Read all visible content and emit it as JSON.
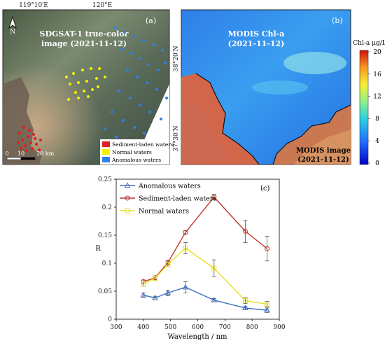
{
  "panel_a": {
    "label": "(a)",
    "title_line1": "SDGSAT-1 true-color",
    "title_line2": "image (2021-11-12)",
    "lon_ticks": [
      "119°10′E",
      "120°E"
    ],
    "lat_ticks": [
      "38°20′N",
      "37°30′N"
    ],
    "north": "N",
    "scale": {
      "labels": [
        "0",
        "10",
        "20 km"
      ]
    },
    "legend": [
      {
        "label": "Sediment-laden waters",
        "color": "#e02020"
      },
      {
        "label": "Normal waters",
        "color": "#f5f000"
      },
      {
        "label": "Anomalous waters",
        "color": "#2f7fe8"
      }
    ]
  },
  "panel_b": {
    "label": "(b)",
    "title_line1": "MODIS Chl-a",
    "title_line2": "(2021-11-12)",
    "footer_line1": "MODIS image",
    "footer_line2": "(2021-11-12)",
    "colorbar_title": "Chl-a μg/L",
    "colorbar_ticks": [
      "20",
      "16",
      "12",
      "8",
      "4",
      "0"
    ]
  },
  "chart_data": {
    "type": "line",
    "panel_label": "(c)",
    "xlabel": "Wavelength / nm",
    "ylabel": "R",
    "xlim": [
      300,
      900
    ],
    "ylim": [
      0,
      0.25
    ],
    "xticks": [
      300,
      400,
      500,
      600,
      700,
      800,
      900
    ],
    "yticks": [
      0,
      0.05,
      0.1,
      0.15,
      0.2,
      0.25
    ],
    "x": [
      400,
      443,
      490,
      555,
      660,
      775,
      855
    ],
    "series": [
      {
        "name": "Anomalous waters",
        "color": "#3f72c4",
        "marker": "triangle",
        "values": [
          0.043,
          0.038,
          0.047,
          0.057,
          0.034,
          0.02,
          0.016
        ],
        "errors": [
          0.004,
          0.003,
          0.005,
          0.01,
          0.003,
          0.003,
          0.004
        ]
      },
      {
        "name": "Sediment-laden waters",
        "color": "#c0392b",
        "marker": "circle",
        "values": [
          0.067,
          0.074,
          0.101,
          0.155,
          0.218,
          0.157,
          0.126
        ],
        "errors": [
          0.003,
          0.003,
          0.004,
          0.003,
          0.005,
          0.02,
          0.022
        ]
      },
      {
        "name": "Normal waters",
        "color": "#e8e020",
        "marker": "square",
        "values": [
          0.063,
          0.073,
          0.098,
          0.127,
          0.091,
          0.033,
          0.027
        ],
        "errors": [
          0.004,
          0.004,
          0.004,
          0.01,
          0.015,
          0.005,
          0.005
        ]
      }
    ],
    "legend_position": "top-left"
  }
}
